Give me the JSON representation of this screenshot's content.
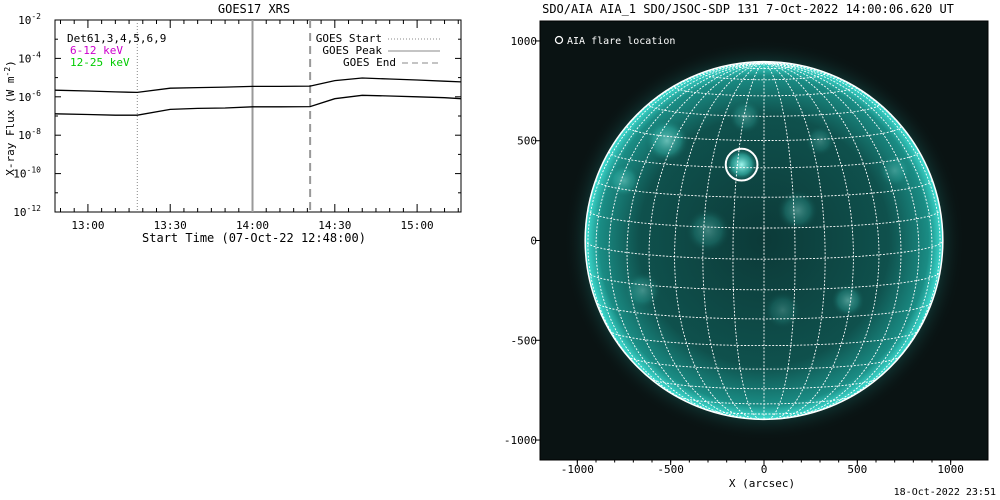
{
  "chart_data": [
    {
      "type": "line",
      "title": "GOES17 XRS",
      "xlabel": "Start Time (07-Oct-22 12:48:00)",
      "ylabel": "X-ray Flux (W m",
      "ylabel_sup": "-2",
      "ylabel_close": ")",
      "yscale": "log",
      "ylim": [
        1e-12,
        0.01
      ],
      "xlim": [
        "12:48",
        "15:16"
      ],
      "yticks": [
        {
          "exp": "-2",
          "value": 0.01
        },
        {
          "exp": "-4",
          "value": 0.0001
        },
        {
          "exp": "-6",
          "value": 1e-06
        },
        {
          "exp": "-8",
          "value": 1e-08
        },
        {
          "exp": "-10",
          "value": 1e-10
        },
        {
          "exp": "-12",
          "value": 1e-12
        }
      ],
      "ytick_base": "10",
      "xticks": [
        "13:00",
        "13:30",
        "14:00",
        "14:30",
        "15:00"
      ],
      "top_left_labels": [
        {
          "text": "Det61,3,4,5,6,9",
          "color": "#000000"
        },
        {
          "text": "6-12 keV",
          "color": "#cc00cc"
        },
        {
          "text": "12-25 keV",
          "color": "#00cc00"
        }
      ],
      "legend": {
        "placement": "top-right",
        "entries": [
          {
            "label": "GOES Start",
            "style": "dotted"
          },
          {
            "label": "GOES Peak",
            "style": "solid"
          },
          {
            "label": "GOES End",
            "style": "dashed"
          }
        ]
      },
      "markers": {
        "start": "13:18",
        "peak": "14:00",
        "end": "14:21"
      },
      "series": [
        {
          "x": [
            "12:48",
            "13:00",
            "13:10",
            "13:18",
            "13:30",
            "13:40",
            "13:50",
            "14:00",
            "14:10",
            "14:21",
            "14:30",
            "14:40",
            "14:50",
            "15:00",
            "15:10",
            "15:16"
          ],
          "values": [
            2.2e-06,
            2e-06,
            1.8e-06,
            1.7e-06,
            2.8e-06,
            3e-06,
            3.2e-06,
            3.5e-06,
            3.5e-06,
            3.6e-06,
            7e-06,
            9.5e-06,
            8.5e-06,
            7.5e-06,
            6.5e-06,
            6e-06
          ]
        },
        {
          "x": [
            "12:48",
            "13:00",
            "13:10",
            "13:18",
            "13:30",
            "13:40",
            "13:50",
            "14:00",
            "14:10",
            "14:21",
            "14:30",
            "14:40",
            "14:50",
            "15:00",
            "15:10",
            "15:16"
          ],
          "values": [
            1.3e-07,
            1.2e-07,
            1.1e-07,
            1.1e-07,
            2.2e-07,
            2.5e-07,
            2.6e-07,
            3e-07,
            3e-07,
            3.1e-07,
            8e-07,
            1.2e-06,
            1.1e-06,
            1e-06,
            9e-07,
            8e-07
          ]
        }
      ]
    },
    {
      "type": "image",
      "title": "SDO/AIA AIA_1 SDO/JSOC-SDP 131  7-Oct-2022 14:00:06.620 UT",
      "xlabel": "X (arcsec)",
      "xlim": [
        -1200,
        1200
      ],
      "ylim": [
        -1100,
        1100
      ],
      "xticks": [
        "-1000",
        "-500",
        "0",
        "500",
        "1000"
      ],
      "yticks": [
        "1000",
        "500",
        "0",
        "-500",
        "-1000"
      ],
      "annotation": "AIA flare location",
      "solar_radius_arcsec": 958,
      "flare_location": {
        "x": -120,
        "y": 380,
        "r": 85
      },
      "colors": {
        "background": "#0a1313",
        "disk": "#0e4f4c",
        "limb": "#2fd0c4",
        "grid": "#ffffff",
        "active": "#7ff2e8"
      }
    }
  ],
  "footer": "18-Oct-2022 23:51"
}
